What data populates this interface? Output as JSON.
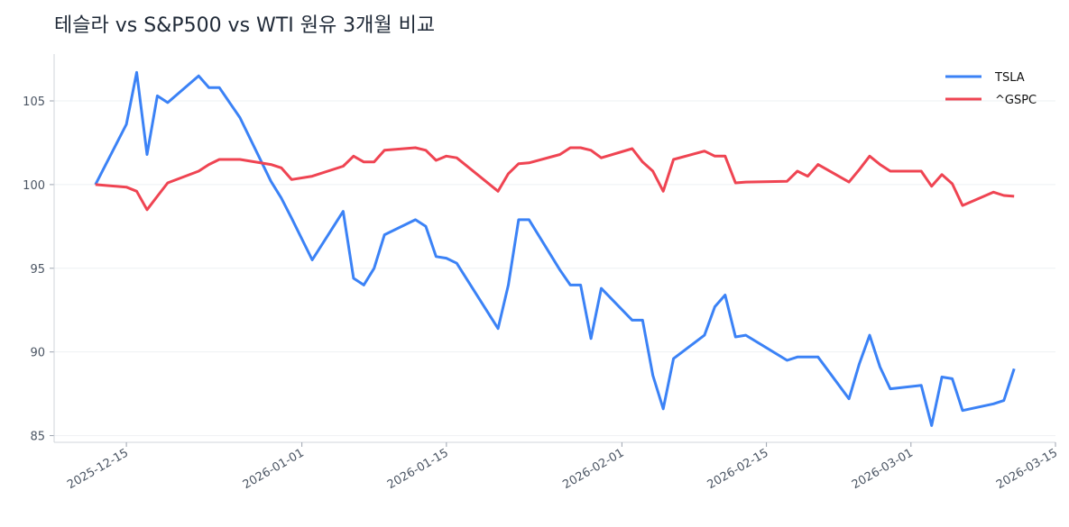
{
  "chart_data": {
    "type": "line",
    "title": "테슬라 vs S&P500 vs WTI 원유 3개월 비교",
    "xlabel": "",
    "ylabel": "",
    "xlim": [
      "2025-12-08",
      "2026-03-15"
    ],
    "ylim": [
      84.6,
      107.8
    ],
    "yticks": [
      85,
      90,
      95,
      100,
      105
    ],
    "xticks": [
      "2025-12-15",
      "2026-01-01",
      "2026-01-15",
      "2026-02-01",
      "2026-02-15",
      "2026-03-01",
      "2026-03-15"
    ],
    "grid": true,
    "legend_position": "top-right",
    "x": [
      "2025-12-12",
      "2025-12-15",
      "2025-12-16",
      "2025-12-17",
      "2025-12-18",
      "2025-12-19",
      "2025-12-22",
      "2025-12-23",
      "2025-12-24",
      "2025-12-26",
      "2025-12-29",
      "2025-12-30",
      "2025-12-31",
      "2026-01-02",
      "2026-01-05",
      "2026-01-06",
      "2026-01-07",
      "2026-01-08",
      "2026-01-09",
      "2026-01-12",
      "2026-01-13",
      "2026-01-14",
      "2026-01-15",
      "2026-01-16",
      "2026-01-20",
      "2026-01-21",
      "2026-01-22",
      "2026-01-23",
      "2026-01-26",
      "2026-01-27",
      "2026-01-28",
      "2026-01-29",
      "2026-01-30",
      "2026-02-02",
      "2026-02-03",
      "2026-02-04",
      "2026-02-05",
      "2026-02-06",
      "2026-02-09",
      "2026-02-10",
      "2026-02-11",
      "2026-02-12",
      "2026-02-13",
      "2026-02-17",
      "2026-02-18",
      "2026-02-19",
      "2026-02-20",
      "2026-02-23",
      "2026-02-24",
      "2026-02-25",
      "2026-02-26",
      "2026-02-27",
      "2026-03-02",
      "2026-03-03",
      "2026-03-04",
      "2026-03-05",
      "2026-03-06",
      "2026-03-09",
      "2026-03-10",
      "2026-03-11"
    ],
    "series": [
      {
        "name": "TSLA",
        "color": "#3b82f6",
        "values": [
          100,
          103.6,
          106.7,
          101.8,
          105.3,
          104.9,
          106.5,
          105.8,
          105.8,
          104.0,
          100.2,
          99.2,
          98.0,
          95.5,
          98.4,
          94.4,
          94.0,
          95.0,
          97.0,
          97.9,
          97.5,
          95.7,
          95.6,
          95.3,
          91.4,
          94.0,
          97.9,
          97.9,
          94.9,
          94.0,
          94.0,
          90.8,
          93.8,
          91.9,
          91.9,
          88.6,
          86.6,
          89.6,
          91.0,
          92.7,
          93.4,
          90.9,
          91.0,
          89.5,
          89.7,
          89.7,
          89.7,
          87.2,
          89.3,
          91.0,
          89.1,
          87.8,
          88.0,
          85.6,
          88.5,
          88.4,
          86.5,
          86.9,
          87.1,
          89.0
        ]
      },
      {
        "name": "^GSPC",
        "color": "#ef4452",
        "values": [
          100,
          99.85,
          99.6,
          98.5,
          99.3,
          100.1,
          100.8,
          101.2,
          101.5,
          101.5,
          101.2,
          101.0,
          100.3,
          100.5,
          101.1,
          101.7,
          101.35,
          101.35,
          102.05,
          102.2,
          102.05,
          101.45,
          101.7,
          101.6,
          99.6,
          100.65,
          101.25,
          101.3,
          101.8,
          102.2,
          102.2,
          102.05,
          101.6,
          102.15,
          101.35,
          100.8,
          99.6,
          101.5,
          102.0,
          101.7,
          101.7,
          100.1,
          100.15,
          100.2,
          100.8,
          100.5,
          101.2,
          100.15,
          100.9,
          101.7,
          101.2,
          100.8,
          100.8,
          99.9,
          100.6,
          100.05,
          98.75,
          99.55,
          99.35,
          99.3
        ]
      }
    ]
  }
}
